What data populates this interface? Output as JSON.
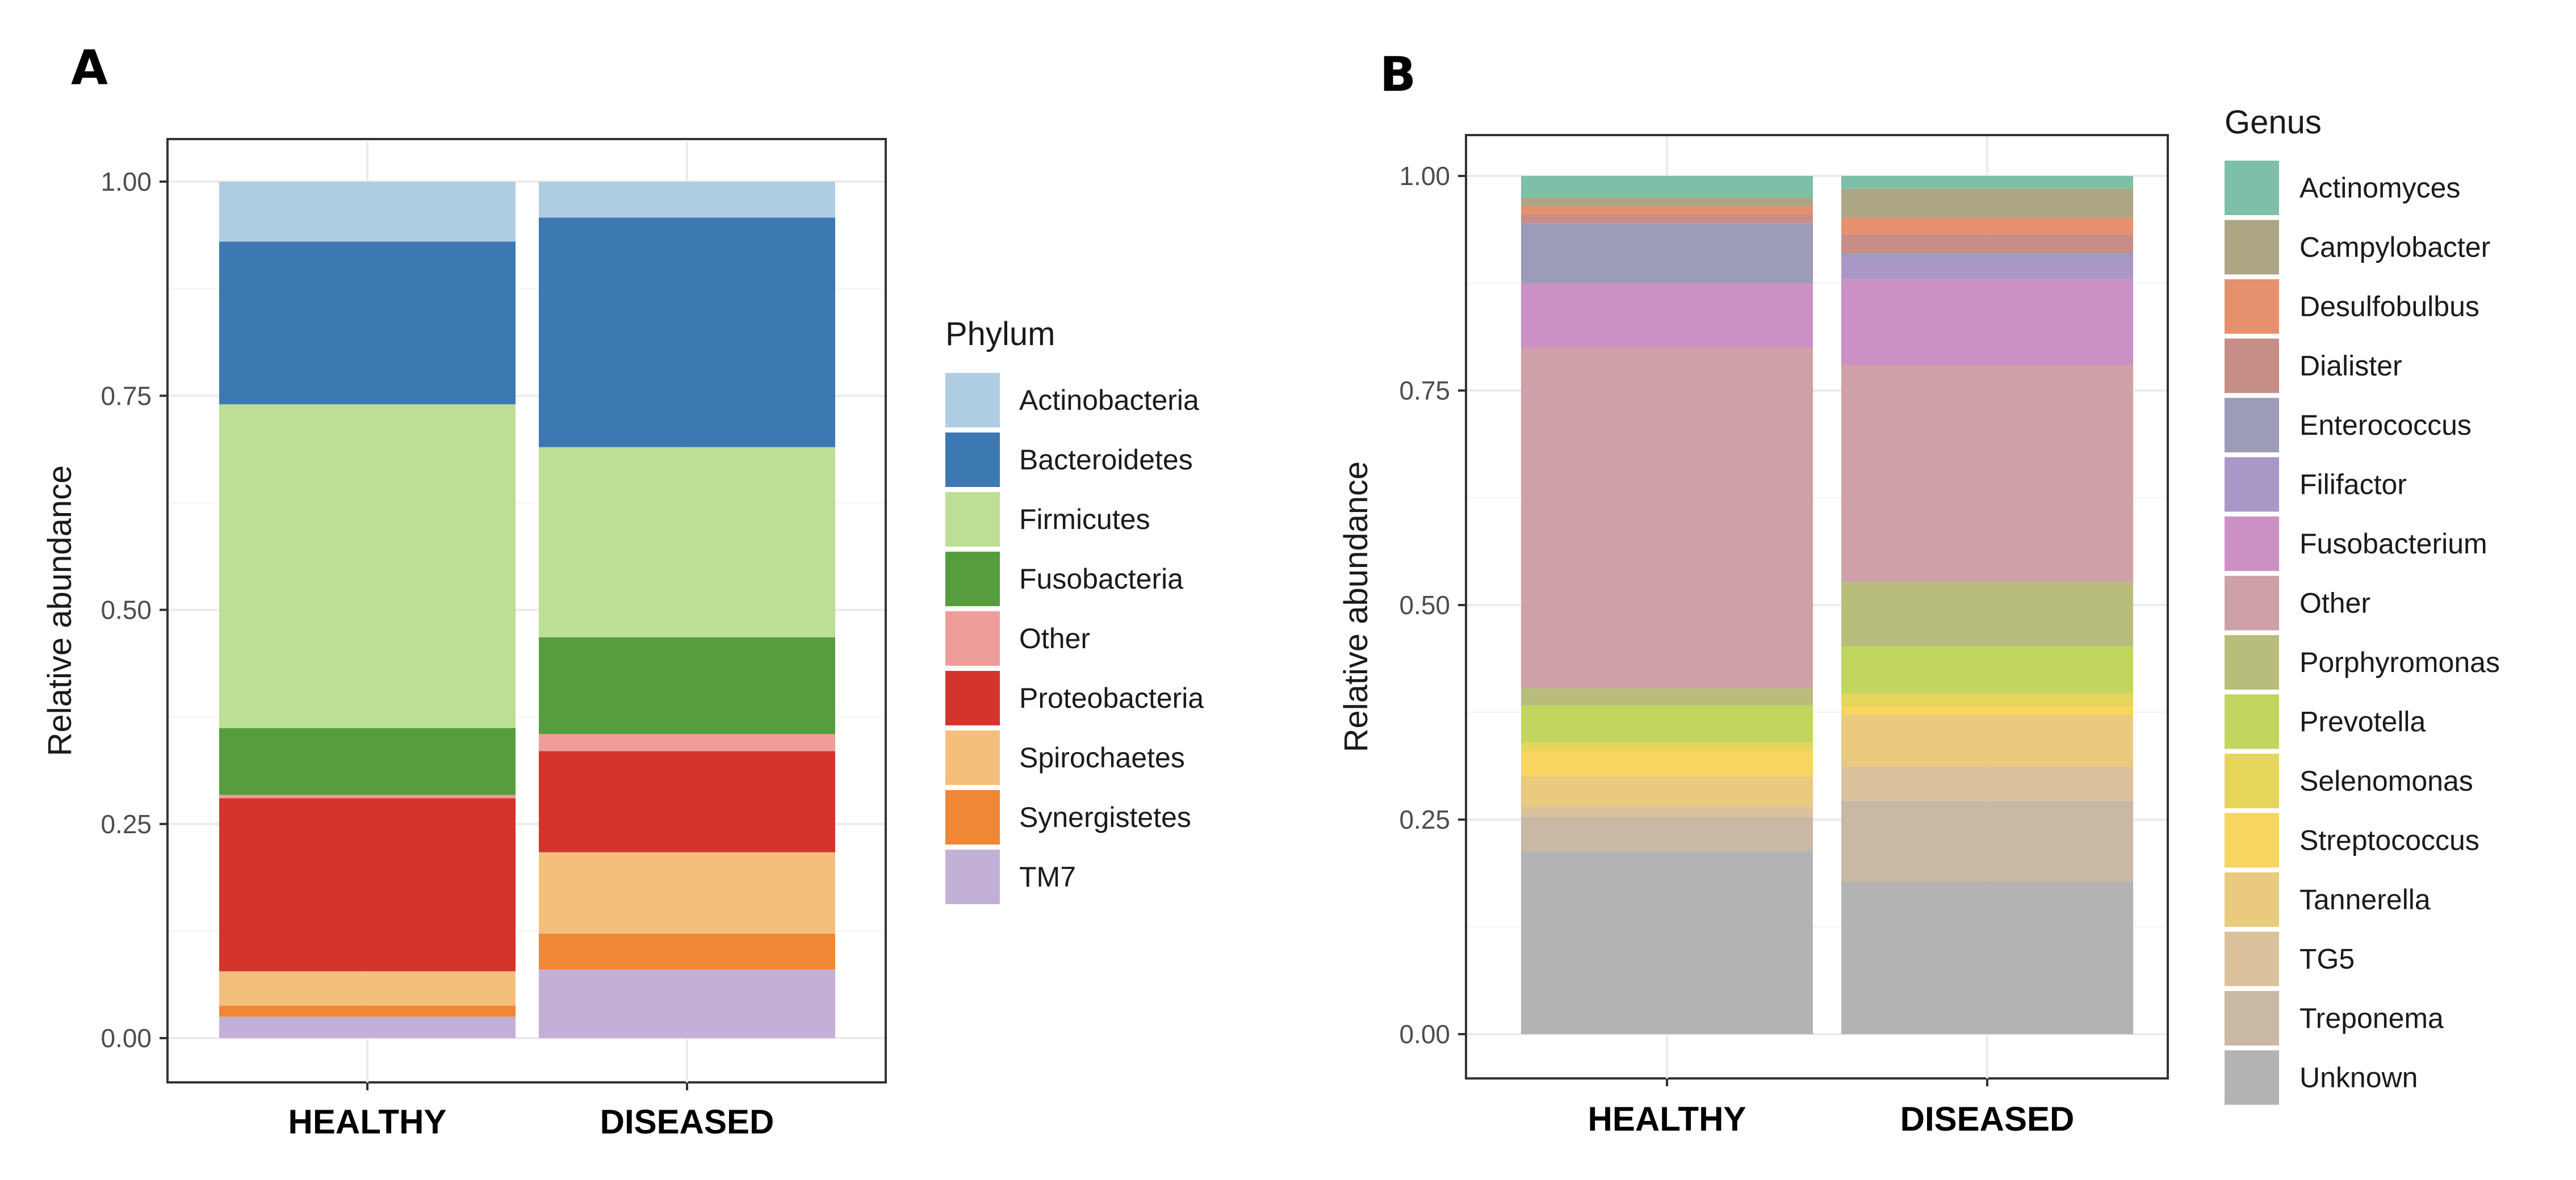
{
  "chart_data": [
    {
      "type": "bar",
      "stacked": true,
      "panel_label": "A",
      "ylabel": "Relative abundance",
      "xlabel": "",
      "ylim": [
        0,
        1
      ],
      "y_ticks": [
        "0.00",
        "0.25",
        "0.50",
        "0.75",
        "1.00"
      ],
      "categories": [
        "HEALTHY",
        "DISEASED"
      ],
      "legend_title": "Phylum",
      "legend_position": "right",
      "grid": true,
      "series": [
        {
          "name": "TM7",
          "color": "#c3b0d6",
          "values": [
            0.025,
            0.08
          ]
        },
        {
          "name": "Synergistetes",
          "color": "#f08735",
          "values": [
            0.013,
            0.042
          ]
        },
        {
          "name": "Spirochaetes",
          "color": "#f4bf7c",
          "values": [
            0.04,
            0.095
          ]
        },
        {
          "name": "Proteobacteria",
          "color": "#d3352d",
          "values": [
            0.202,
            0.118
          ]
        },
        {
          "name": "Other",
          "color": "#ee9d9a",
          "values": [
            0.004,
            0.02
          ]
        },
        {
          "name": "Fusobacteria",
          "color": "#559d3e",
          "values": [
            0.078,
            0.113
          ]
        },
        {
          "name": "Firmicutes",
          "color": "#bcde95",
          "values": [
            0.378,
            0.222
          ]
        },
        {
          "name": "Bacteroidetes",
          "color": "#3c78b1",
          "values": [
            0.19,
            0.268
          ]
        },
        {
          "name": "Actinobacteria",
          "color": "#aecde2",
          "values": [
            0.07,
            0.042
          ]
        }
      ],
      "legend_order": [
        "Actinobacteria",
        "Bacteroidetes",
        "Firmicutes",
        "Fusobacteria",
        "Other",
        "Proteobacteria",
        "Spirochaetes",
        "Synergistetes",
        "TM7"
      ]
    },
    {
      "type": "bar",
      "stacked": true,
      "panel_label": "B",
      "ylabel": "Relative abundance",
      "xlabel": "",
      "ylim": [
        0,
        1
      ],
      "y_ticks": [
        "0.00",
        "0.25",
        "0.50",
        "0.75",
        "1.00"
      ],
      "categories": [
        "HEALTHY",
        "DISEASED"
      ],
      "legend_title": "Genus",
      "legend_position": "right",
      "grid": true,
      "series": [
        {
          "name": "Unknown",
          "color": "#b3b3b3",
          "values": [
            0.213,
            0.178
          ]
        },
        {
          "name": "Treponema",
          "color": "#c8b8a4",
          "values": [
            0.04,
            0.094
          ]
        },
        {
          "name": "TG5",
          "color": "#dbc29c",
          "values": [
            0.012,
            0.04
          ]
        },
        {
          "name": "Tannerella",
          "color": "#e9ca7f",
          "values": [
            0.035,
            0.06
          ]
        },
        {
          "name": "Streptococcus",
          "color": "#f7d561",
          "values": [
            0.03,
            0.01
          ]
        },
        {
          "name": "Selenomonas",
          "color": "#e5d55b",
          "values": [
            0.01,
            0.015
          ]
        },
        {
          "name": "Prevotella",
          "color": "#c0d65e",
          "values": [
            0.043,
            0.055
          ]
        },
        {
          "name": "Porphyromonas",
          "color": "#b9bd7b",
          "values": [
            0.02,
            0.075
          ]
        },
        {
          "name": "Other",
          "color": "#cea0a8",
          "values": [
            0.397,
            0.253
          ]
        },
        {
          "name": "Fusobacterium",
          "color": "#cb90c4",
          "values": [
            0.075,
            0.1
          ]
        },
        {
          "name": "Filifactor",
          "color": "#a998c7",
          "values": [
            0.0,
            0.025
          ]
        },
        {
          "name": "Enterococcus",
          "color": "#9c9cb9",
          "values": [
            0.07,
            0.005
          ]
        },
        {
          "name": "Dialister",
          "color": "#c68e87",
          "values": [
            0.01,
            0.022
          ]
        },
        {
          "name": "Desulfobulbus",
          "color": "#e6916e",
          "values": [
            0.01,
            0.02
          ]
        },
        {
          "name": "Campylobacter",
          "color": "#aca685",
          "values": [
            0.01,
            0.033
          ]
        },
        {
          "name": "Actinomyces",
          "color": "#7dbfa7",
          "values": [
            0.025,
            0.015
          ]
        }
      ],
      "legend_order": [
        "Actinomyces",
        "Campylobacter",
        "Desulfobulbus",
        "Dialister",
        "Enterococcus",
        "Filifactor",
        "Fusobacterium",
        "Other",
        "Porphyromonas",
        "Prevotella",
        "Selenomonas",
        "Streptococcus",
        "Tannerella",
        "TG5",
        "Treponema",
        "Unknown"
      ]
    }
  ]
}
